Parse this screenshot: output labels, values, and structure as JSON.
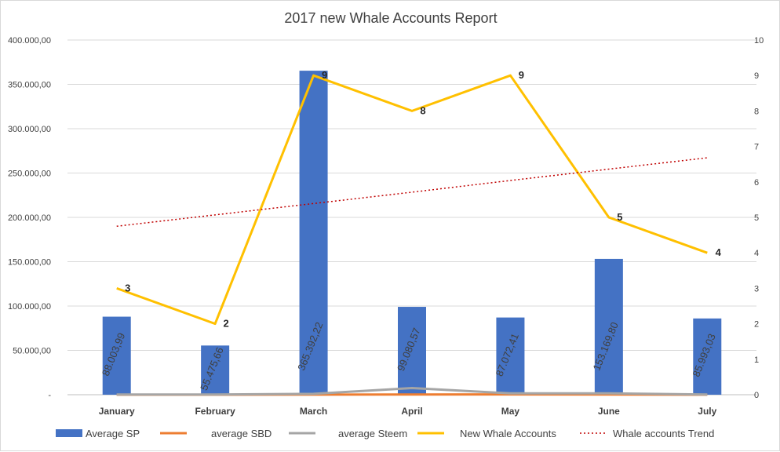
{
  "chart_data": {
    "type": "bar",
    "title": "2017 new Whale Accounts Report",
    "categories": [
      "January",
      "February",
      "March",
      "April",
      "May",
      "June",
      "July"
    ],
    "y_left": {
      "lim": [
        0,
        400000
      ],
      "ticks": [
        "-",
        "50.000,00",
        "100.000,00",
        "150.000,00",
        "200.000,00",
        "250.000,00",
        "300.000,00",
        "350.000,00",
        "400.000,00"
      ]
    },
    "y_right": {
      "lim": [
        0,
        10
      ],
      "ticks": [
        "0",
        "1",
        "2",
        "3",
        "4",
        "5",
        "6",
        "7",
        "8",
        "9",
        "10"
      ]
    },
    "series": [
      {
        "name": "Average SP",
        "kind": "bar",
        "axis": "left",
        "color": "#4472c4",
        "values": [
          88003.99,
          55475.66,
          365392.22,
          99080.57,
          87072.41,
          153169.8,
          85993.03
        ],
        "labels": [
          "88.003,99",
          "55.475,66",
          "365.392,22",
          "99.080,57",
          "87.072,41",
          "153.169,80",
          "85.993,03"
        ]
      },
      {
        "name": "average SBD",
        "kind": "line",
        "axis": "left",
        "color": "#ed7d31",
        "values": [
          0,
          0,
          100,
          200,
          300,
          200,
          0
        ]
      },
      {
        "name": "average Steem",
        "kind": "line",
        "axis": "left",
        "color": "#a5a5a5",
        "values": [
          200,
          200,
          1000,
          7500,
          1500,
          1500,
          200
        ]
      },
      {
        "name": "New Whale Accounts",
        "kind": "line",
        "axis": "right",
        "color": "#ffc000",
        "values": [
          3,
          2,
          9,
          8,
          9,
          5,
          4
        ],
        "labels": [
          "3",
          "2",
          "9",
          "8",
          "9",
          "5",
          "4"
        ]
      },
      {
        "name": "Whale accounts Trend",
        "kind": "trend",
        "axis": "right",
        "color": "#c00000",
        "values": [
          4.75,
          5.07,
          5.39,
          5.71,
          6.04,
          6.36,
          6.68
        ]
      }
    ],
    "grid": true,
    "legend": "bottom"
  }
}
